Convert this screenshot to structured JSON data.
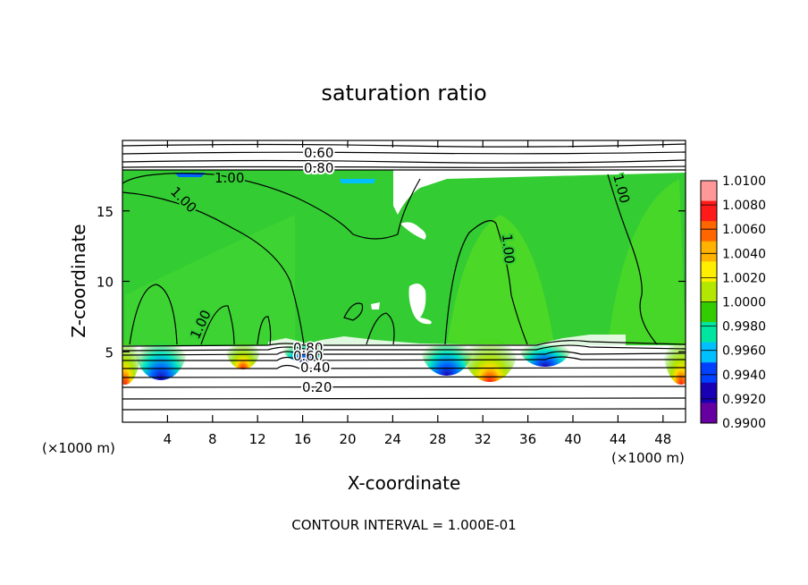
{
  "chart_data": {
    "type": "heatmap",
    "title": "saturation ratio",
    "xlabel": "X-coordinate",
    "ylabel": "Z-coordinate",
    "x_unit_label_left": "(×1000 m)",
    "x_unit_label_right": "(×1000 m)",
    "xlim": [
      0,
      50
    ],
    "ylim": [
      0,
      20
    ],
    "x_ticks": [
      4,
      8,
      12,
      16,
      20,
      24,
      28,
      32,
      36,
      40,
      44,
      48
    ],
    "y_ticks": [
      5,
      10,
      15
    ],
    "footer": "CONTOUR INTERVAL = 1.000E-01",
    "colorbar": {
      "labels": [
        "1.0100",
        "1.0080",
        "1.0060",
        "1.0040",
        "1.0020",
        "1.0000",
        "0.9980",
        "0.9960",
        "0.9940",
        "0.9920",
        "0.9900"
      ],
      "colors": [
        "#ff9999",
        "#ff1a1a",
        "#ff6600",
        "#ffb300",
        "#ffee00",
        "#b3e600",
        "#33cc00",
        "#00e6a0",
        "#00bfff",
        "#0040ff",
        "#1a00b3",
        "#6600a0"
      ]
    },
    "contours": [
      {
        "label": "0.60",
        "z": 18.7
      },
      {
        "label": "0.80",
        "z": 17.9
      },
      {
        "label": "1.00",
        "z": 17.6
      },
      {
        "label": "0.40",
        "z": 3.7
      },
      {
        "label": "0.20",
        "z": 2.5
      }
    ],
    "contour_labels": [
      {
        "text": "0.60",
        "x": 14.5,
        "z": 18.8
      },
      {
        "text": "0.80",
        "x": 14.5,
        "z": 17.9
      },
      {
        "text": "1.00",
        "x": 7.7,
        "z": 17.2
      },
      {
        "text": "1.00",
        "x": 5.2,
        "z": 15.5
      },
      {
        "text": "1.00",
        "x": 33.5,
        "z": 12.3
      },
      {
        "text": "1.00",
        "x": 44.5,
        "z": 16.3
      },
      {
        "text": "1.00",
        "x": 7.0,
        "z": 6.8
      },
      {
        "text": "0.80",
        "x": 13.2,
        "z": 5.2
      },
      {
        "text": "0.60",
        "x": 13.2,
        "z": 4.6
      },
      {
        "text": "0.40",
        "x": 13.8,
        "z": 3.8
      },
      {
        "text": "0.20",
        "x": 13.7,
        "z": 2.5
      }
    ],
    "grid": false,
    "legend_placement": "right"
  }
}
